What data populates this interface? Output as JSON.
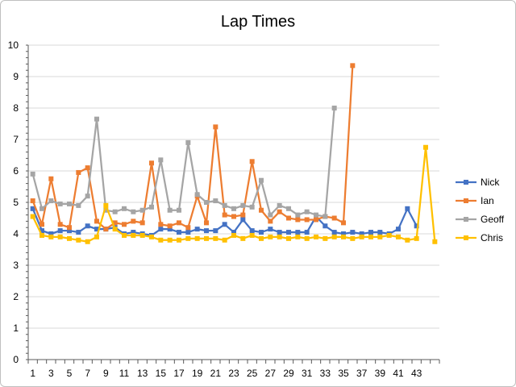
{
  "chart_data": {
    "type": "line",
    "title": "Lap Times",
    "xlabel": "",
    "ylabel": "",
    "ylim": [
      0,
      10
    ],
    "yticks": [
      0,
      1,
      2,
      3,
      4,
      5,
      6,
      7,
      8,
      9,
      10
    ],
    "x": [
      1,
      2,
      3,
      4,
      5,
      6,
      7,
      8,
      9,
      10,
      11,
      12,
      13,
      14,
      15,
      16,
      17,
      18,
      19,
      20,
      21,
      22,
      23,
      24,
      25,
      26,
      27,
      28,
      29,
      30,
      31,
      32,
      33,
      34,
      35,
      36,
      37,
      38,
      39,
      40,
      41,
      42,
      43,
      44,
      45
    ],
    "xtick_labels": [
      "1",
      "3",
      "5",
      "7",
      "9",
      "11",
      "13",
      "15",
      "17",
      "19",
      "21",
      "23",
      "25",
      "27",
      "29",
      "31",
      "33",
      "35",
      "37",
      "39",
      "41",
      "43"
    ],
    "xtick_values": [
      1,
      3,
      5,
      7,
      9,
      11,
      13,
      15,
      17,
      19,
      21,
      23,
      25,
      27,
      29,
      31,
      33,
      35,
      37,
      39,
      41,
      43
    ],
    "grid": "horizontal",
    "legend": "right",
    "series": [
      {
        "name": "Nick",
        "color": "#4472C4",
        "values": [
          4.8,
          4.1,
          4.0,
          4.1,
          4.1,
          4.05,
          4.25,
          4.15,
          4.15,
          4.2,
          4.0,
          4.05,
          4.0,
          3.95,
          4.15,
          4.15,
          4.05,
          4.05,
          4.15,
          4.1,
          4.1,
          4.3,
          4.05,
          4.45,
          4.1,
          4.05,
          4.15,
          4.05,
          4.05,
          4.05,
          4.05,
          4.55,
          4.25,
          4.05,
          4.0,
          4.05,
          4.0,
          4.05,
          4.05,
          4.0,
          4.15,
          4.8,
          4.25,
          null,
          null
        ]
      },
      {
        "name": "Ian",
        "color": "#ED7D31",
        "values": [
          5.05,
          4.3,
          5.75,
          4.3,
          4.2,
          5.95,
          6.1,
          4.4,
          4.15,
          4.35,
          4.3,
          4.4,
          4.35,
          6.25,
          4.3,
          4.25,
          4.35,
          4.2,
          5.2,
          4.35,
          7.4,
          4.6,
          4.55,
          4.6,
          6.3,
          4.75,
          4.4,
          4.7,
          4.5,
          4.45,
          4.45,
          4.45,
          4.55,
          4.5,
          4.35,
          9.35,
          null,
          null,
          null,
          null,
          null,
          null,
          null,
          null,
          null
        ]
      },
      {
        "name": "Geoff",
        "color": "#A5A5A5",
        "values": [
          5.9,
          4.8,
          5.05,
          4.95,
          4.95,
          4.9,
          5.2,
          7.65,
          4.75,
          4.7,
          4.8,
          4.7,
          4.75,
          4.85,
          6.35,
          4.75,
          4.75,
          6.9,
          5.25,
          5.0,
          5.05,
          4.9,
          4.8,
          4.9,
          4.85,
          5.7,
          4.6,
          4.9,
          4.8,
          4.6,
          4.7,
          4.6,
          4.55,
          8.0,
          null,
          null,
          null,
          null,
          null,
          null,
          null,
          null,
          null,
          null,
          null
        ]
      },
      {
        "name": "Chris",
        "color": "#FFC000",
        "values": [
          4.55,
          3.95,
          3.9,
          3.9,
          3.85,
          3.8,
          3.75,
          3.9,
          4.9,
          4.15,
          3.95,
          3.95,
          3.95,
          3.9,
          3.8,
          3.8,
          3.8,
          3.85,
          3.85,
          3.85,
          3.85,
          3.8,
          3.95,
          3.85,
          3.95,
          3.85,
          3.9,
          3.9,
          3.85,
          3.9,
          3.85,
          3.9,
          3.85,
          3.9,
          3.9,
          3.85,
          3.9,
          3.9,
          3.9,
          3.95,
          3.9,
          3.8,
          3.85,
          6.75,
          3.75
        ]
      }
    ]
  }
}
